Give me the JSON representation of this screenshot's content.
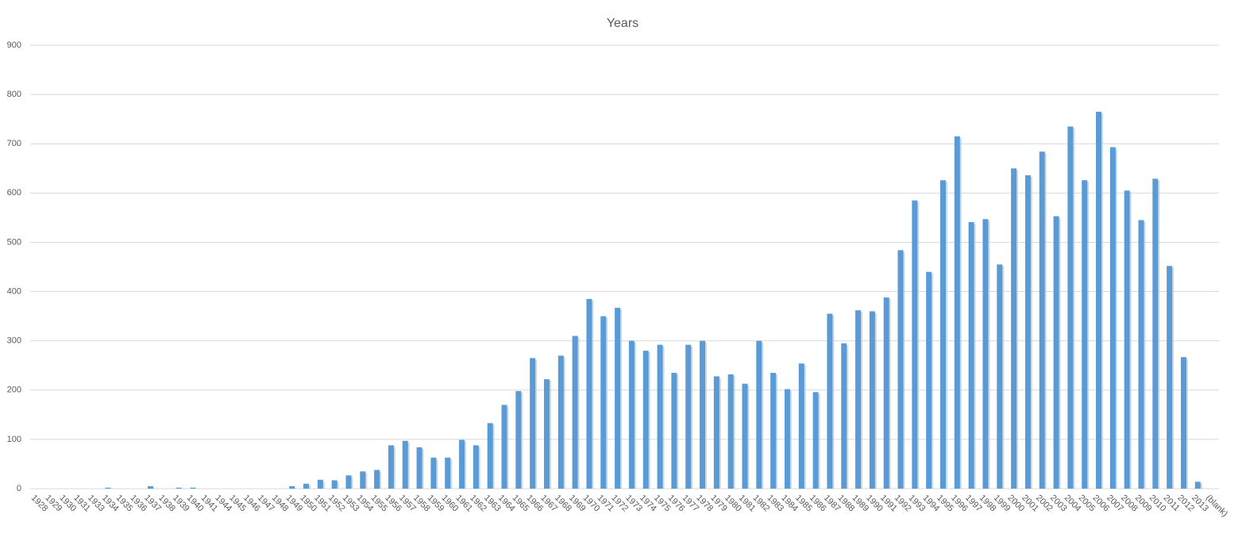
{
  "chart_data": {
    "type": "bar",
    "title": "Years",
    "categories": [
      "1928",
      "1929",
      "1930",
      "1931",
      "1933",
      "1934",
      "1935",
      "1936",
      "1937",
      "1938",
      "1939",
      "1940",
      "1941",
      "1944",
      "1945",
      "1946",
      "1947",
      "1948",
      "1949",
      "1950",
      "1951",
      "1952",
      "1953",
      "1954",
      "1955",
      "1956",
      "1957",
      "1958",
      "1959",
      "1960",
      "1961",
      "1962",
      "1963",
      "1964",
      "1965",
      "1966",
      "1967",
      "1968",
      "1969",
      "1970",
      "1971",
      "1972",
      "1973",
      "1974",
      "1975",
      "1976",
      "1977",
      "1978",
      "1979",
      "1980",
      "1981",
      "1982",
      "1983",
      "1984",
      "1985",
      "1986",
      "1987",
      "1988",
      "1989",
      "1990",
      "1991",
      "1992",
      "1993",
      "1994",
      "1995",
      "1996",
      "1997",
      "1998",
      "1999",
      "2000",
      "2001",
      "2002",
      "2003",
      "2004",
      "2005",
      "2006",
      "2007",
      "2008",
      "2009",
      "2010",
      "2011",
      "2012",
      "2013",
      "(blank)"
    ],
    "values": [
      0,
      0,
      0,
      0,
      0,
      2,
      0,
      0,
      5,
      0,
      2,
      2,
      0,
      0,
      0,
      0,
      0,
      0,
      5,
      10,
      18,
      17,
      27,
      35,
      38,
      88,
      97,
      84,
      63,
      63,
      99,
      88,
      133,
      170,
      198,
      265,
      222,
      270,
      310,
      385,
      350,
      367,
      300,
      280,
      292,
      235,
      292,
      300,
      228,
      232,
      213,
      300,
      235,
      202,
      254,
      196,
      355,
      295,
      362,
      360,
      388,
      484,
      585,
      440,
      626,
      715,
      541,
      547,
      455,
      650,
      636,
      684,
      553,
      735,
      626,
      765,
      693,
      605,
      545,
      629,
      452,
      267,
      14,
      0
    ],
    "color": "#5b9bd5",
    "ylim": [
      0,
      900
    ],
    "yticks": [
      0,
      100,
      200,
      300,
      400,
      500,
      600,
      700,
      800,
      900
    ],
    "grid": true
  }
}
